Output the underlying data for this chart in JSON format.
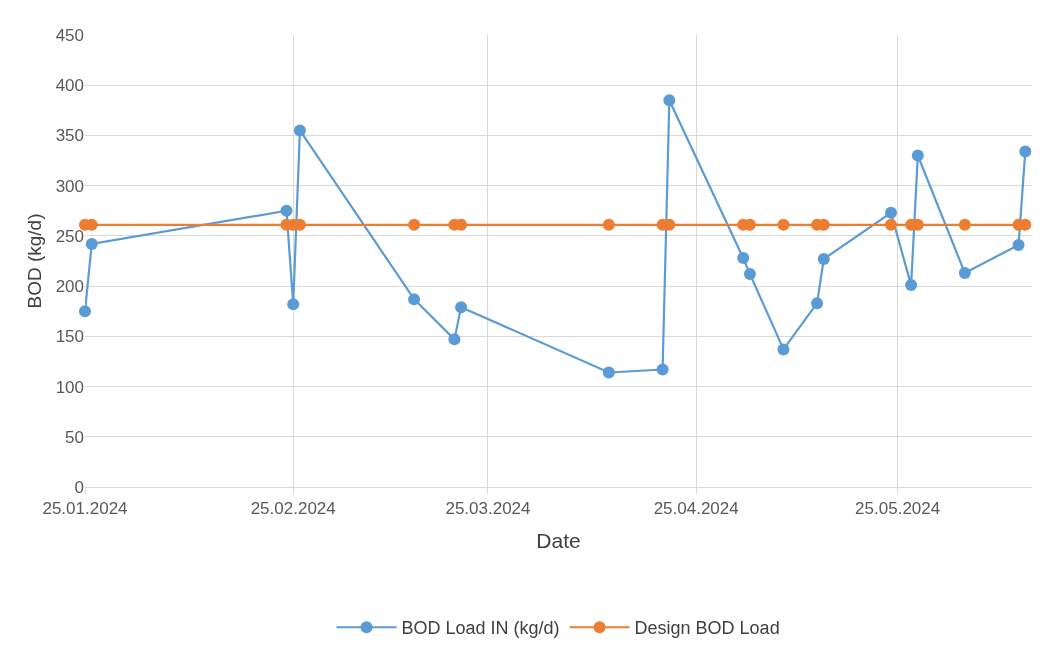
{
  "chart_data": {
    "type": "line",
    "xlabel": "Date",
    "ylabel": "BOD (kg/d)",
    "x": [
      "2024-01-25",
      "2024-01-26",
      "2024-02-24",
      "2024-02-25",
      "2024-02-26",
      "2024-03-14",
      "2024-03-20",
      "2024-03-21",
      "2024-04-12",
      "2024-04-20",
      "2024-04-21",
      "2024-05-02",
      "2024-05-03",
      "2024-05-08",
      "2024-05-13",
      "2024-05-14",
      "2024-05-24",
      "2024-05-27",
      "2024-05-28",
      "2024-06-04",
      "2024-06-12",
      "2024-06-13"
    ],
    "series": [
      {
        "name": "BOD Load IN (kg/d)",
        "color": "#5b9bd5",
        "values": [
          175,
          242,
          275,
          182,
          355,
          187,
          147,
          179,
          114,
          117,
          385,
          228,
          212,
          137,
          183,
          227,
          273,
          201,
          330,
          213,
          241,
          334
        ]
      },
      {
        "name": "Design BOD Load",
        "color": "#ed7d31",
        "values": [
          261,
          261,
          261,
          261,
          261,
          261,
          261,
          261,
          261,
          261,
          261,
          261,
          261,
          261,
          261,
          261,
          261,
          261,
          261,
          261,
          261,
          261
        ]
      }
    ],
    "xlim": [
      "2024-01-25",
      "2024-06-14"
    ],
    "xticks": [
      {
        "value": "2024-01-25",
        "label": "25.01.2024"
      },
      {
        "value": "2024-02-25",
        "label": "25.02.2024"
      },
      {
        "value": "2024-03-25",
        "label": "25.03.2024"
      },
      {
        "value": "2024-04-25",
        "label": "25.04.2024"
      },
      {
        "value": "2024-05-25",
        "label": "25.05.2024"
      }
    ],
    "ylim": [
      0,
      450
    ],
    "yticks": [
      0,
      50,
      100,
      150,
      200,
      250,
      300,
      350,
      400,
      450
    ],
    "grid": true,
    "legend": "bottom",
    "marker": "circle",
    "line_style": "solid"
  }
}
